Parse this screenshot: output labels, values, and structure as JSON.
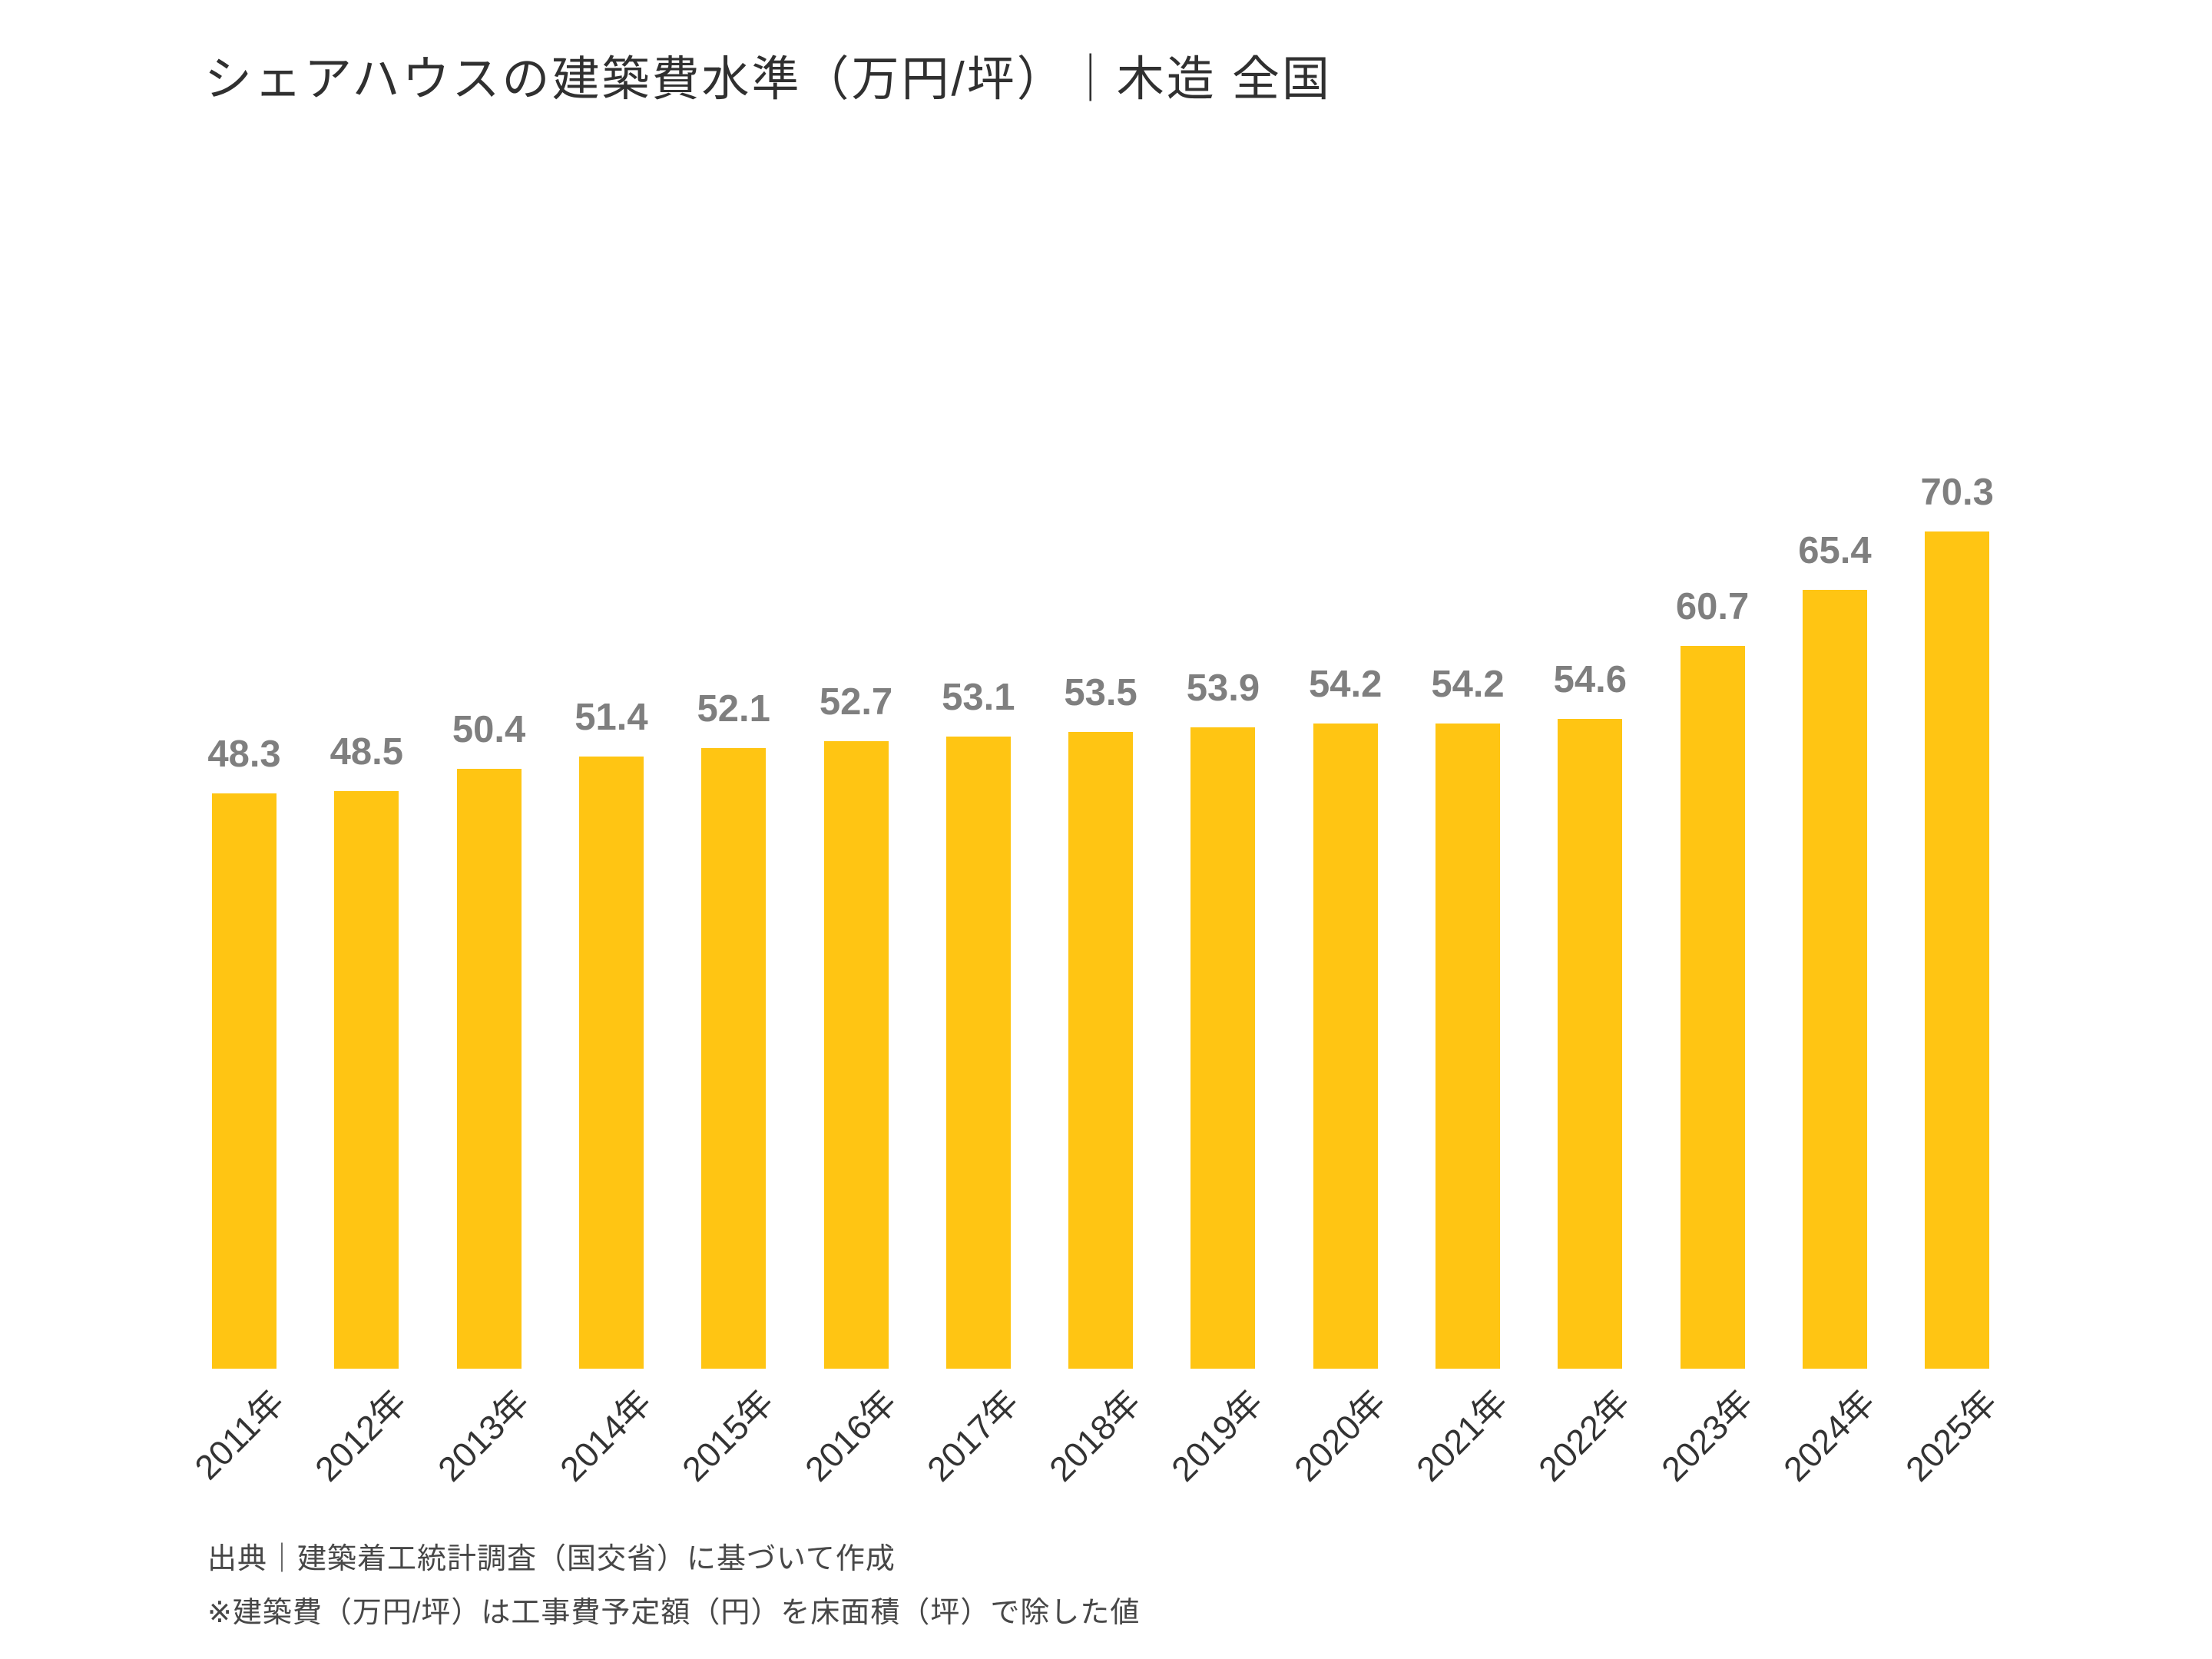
{
  "title": "シェアハウスの建築費水準（万円/坪）｜木造 全国",
  "chart_data": {
    "type": "bar",
    "title": "シェアハウスの建築費水準（万円/坪）｜木造 全国",
    "categories": [
      "2011年",
      "2012年",
      "2013年",
      "2014年",
      "2015年",
      "2016年",
      "2017年",
      "2018年",
      "2019年",
      "2020年",
      "2021年",
      "2022年",
      "2023年",
      "2024年",
      "2025年"
    ],
    "values": [
      48.3,
      48.5,
      50.4,
      51.4,
      52.1,
      52.7,
      53.1,
      53.5,
      53.9,
      54.2,
      54.2,
      54.6,
      60.7,
      65.4,
      70.3
    ],
    "xlabel": "",
    "ylabel": "",
    "ylim": [
      0,
      75
    ],
    "grid": false,
    "legend": false,
    "data_labels": true,
    "x_tick_rotation": 45,
    "bar_color": "#FFC513",
    "value_label_color": "#7F7F7F",
    "tick_label_color": "#333333"
  },
  "notes": {
    "source": "出典｜建築着工統計調査（国交省）に基づいて作成",
    "definition": "※建築費（万円/坪）は工事費予定額（円）を床面積（坪）で除した値"
  }
}
